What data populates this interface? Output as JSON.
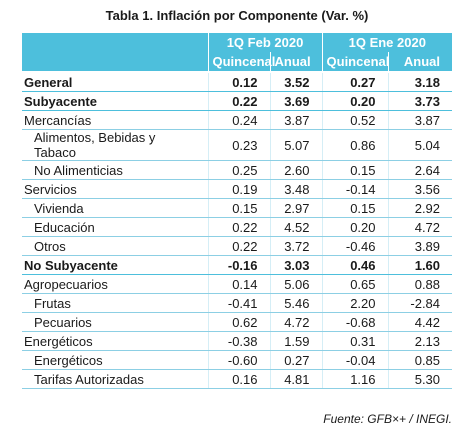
{
  "title": "Tabla 1. Inflación por Componente (Var. %)",
  "table": {
    "groups": [
      "1Q Feb 2020",
      "1Q Ene 2020"
    ],
    "columns": [
      "Quincenal",
      "Anual",
      "Quincenal",
      "Anual"
    ],
    "rows": [
      [
        "General",
        "0.12",
        "3.52",
        "0.27",
        "3.18"
      ],
      [
        "Subyacente",
        "0.22",
        "3.69",
        "0.20",
        "3.73"
      ],
      [
        "Mercancías",
        "0.24",
        "3.87",
        "0.52",
        "3.87"
      ],
      [
        "Alimentos, Bebidas y Tabaco",
        "0.23",
        "5.07",
        "0.86",
        "5.04"
      ],
      [
        "No Alimenticias",
        "0.25",
        "2.60",
        "0.15",
        "2.64"
      ],
      [
        "Servicios",
        "0.19",
        "3.48",
        "-0.14",
        "3.56"
      ],
      [
        "Vivienda",
        "0.15",
        "2.97",
        "0.15",
        "2.92"
      ],
      [
        "Educación",
        "0.22",
        "4.52",
        "0.20",
        "4.72"
      ],
      [
        "Otros",
        "0.22",
        "3.72",
        "-0.46",
        "3.89"
      ],
      [
        "No Subyacente",
        "-0.16",
        "3.03",
        "0.46",
        "1.60"
      ],
      [
        "Agropecuarios",
        "0.14",
        "5.06",
        "0.65",
        "0.88"
      ],
      [
        "Frutas",
        "-0.41",
        "5.46",
        "2.20",
        "-2.84"
      ],
      [
        "Pecuarios",
        "0.62",
        "4.72",
        "-0.68",
        "4.42"
      ],
      [
        "Energéticos",
        "-0.38",
        "1.59",
        "0.31",
        "2.13"
      ],
      [
        "Energéticos",
        "-0.60",
        "0.27",
        "-0.04",
        "0.85"
      ],
      [
        "Tarifas Autorizadas",
        "0.16",
        "4.81",
        "1.16",
        "5.30"
      ]
    ]
  },
  "source": "Fuente: GFB×+ /  INEGI."
}
